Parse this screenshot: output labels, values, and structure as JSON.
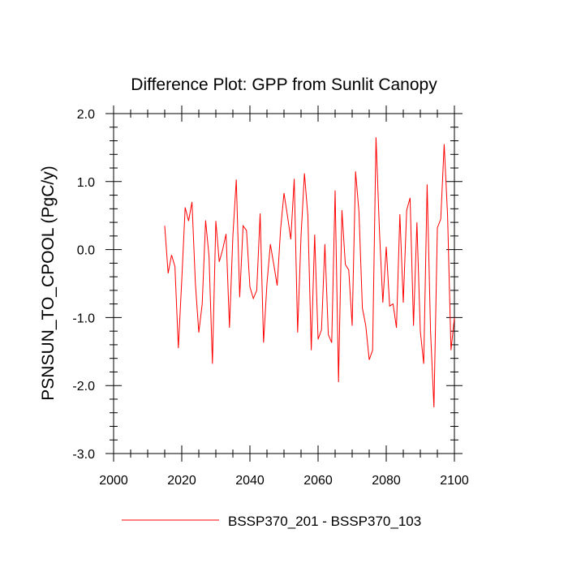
{
  "chart_data": {
    "type": "line",
    "title": "Difference Plot: GPP from Sunlit Canopy",
    "xlabel": "",
    "ylabel": "PSNSUN_TO_CPOOL  (PgC/y)",
    "xlim": [
      2000,
      2100
    ],
    "ylim": [
      -3.0,
      2.0
    ],
    "xticks": [
      2000,
      2020,
      2040,
      2060,
      2080,
      2100
    ],
    "xtick_labels": [
      "2000",
      "2020",
      "2040",
      "2060",
      "2080",
      "2100"
    ],
    "yticks": [
      -3.0,
      -2.0,
      -1.0,
      0.0,
      1.0,
      2.0
    ],
    "ytick_labels": [
      "-3.0",
      "-2.0",
      "-1.0",
      "0.0",
      "1.0",
      "2.0"
    ],
    "grid": false,
    "legend_position": "bottom-center",
    "series": [
      {
        "name": "BSSP370_201 - BSSP370_103",
        "color": "#ff0000",
        "x": [
          2015,
          2016,
          2017,
          2018,
          2019,
          2020,
          2021,
          2022,
          2023,
          2024,
          2025,
          2026,
          2027,
          2028,
          2029,
          2030,
          2031,
          2032,
          2033,
          2034,
          2035,
          2036,
          2037,
          2038,
          2039,
          2040,
          2041,
          2042,
          2043,
          2044,
          2045,
          2046,
          2047,
          2048,
          2049,
          2050,
          2051,
          2052,
          2053,
          2054,
          2055,
          2056,
          2057,
          2058,
          2059,
          2060,
          2061,
          2062,
          2063,
          2064,
          2065,
          2066,
          2067,
          2068,
          2069,
          2070,
          2071,
          2072,
          2073,
          2074,
          2075,
          2076,
          2077,
          2078,
          2079,
          2080,
          2081,
          2082,
          2083,
          2084,
          2085,
          2086,
          2087,
          2088,
          2089,
          2090,
          2091,
          2092,
          2093,
          2094,
          2095,
          2096,
          2097,
          2098,
          2099,
          2100
        ],
        "values": [
          0.35,
          -0.35,
          -0.08,
          -0.25,
          -1.45,
          -0.45,
          0.62,
          0.42,
          0.7,
          -0.5,
          -1.22,
          -0.8,
          0.43,
          -0.1,
          -1.68,
          0.42,
          -0.18,
          0.0,
          0.23,
          -1.15,
          0.2,
          1.03,
          -0.7,
          0.35,
          0.28,
          -0.55,
          -0.72,
          -0.6,
          0.53,
          -1.37,
          -0.5,
          0.08,
          -0.22,
          -0.53,
          0.3,
          0.83,
          0.5,
          0.15,
          1.04,
          -1.22,
          0.2,
          1.12,
          0.5,
          -1.48,
          0.22,
          -1.32,
          -1.18,
          0.08,
          -1.25,
          -1.37,
          0.87,
          -1.95,
          0.58,
          -0.22,
          -0.3,
          -1.12,
          1.15,
          0.55,
          -0.86,
          -1.12,
          -1.62,
          -1.48,
          1.65,
          0.28,
          -0.78,
          0.04,
          -0.83,
          -0.8,
          -1.15,
          0.52,
          -0.78,
          0.58,
          0.76,
          -1.12,
          0.4,
          -1.2,
          -1.68,
          0.96,
          -1.2,
          -2.32,
          0.32,
          0.45,
          1.55,
          0.5,
          -1.48,
          -1.0
        ]
      }
    ]
  }
}
